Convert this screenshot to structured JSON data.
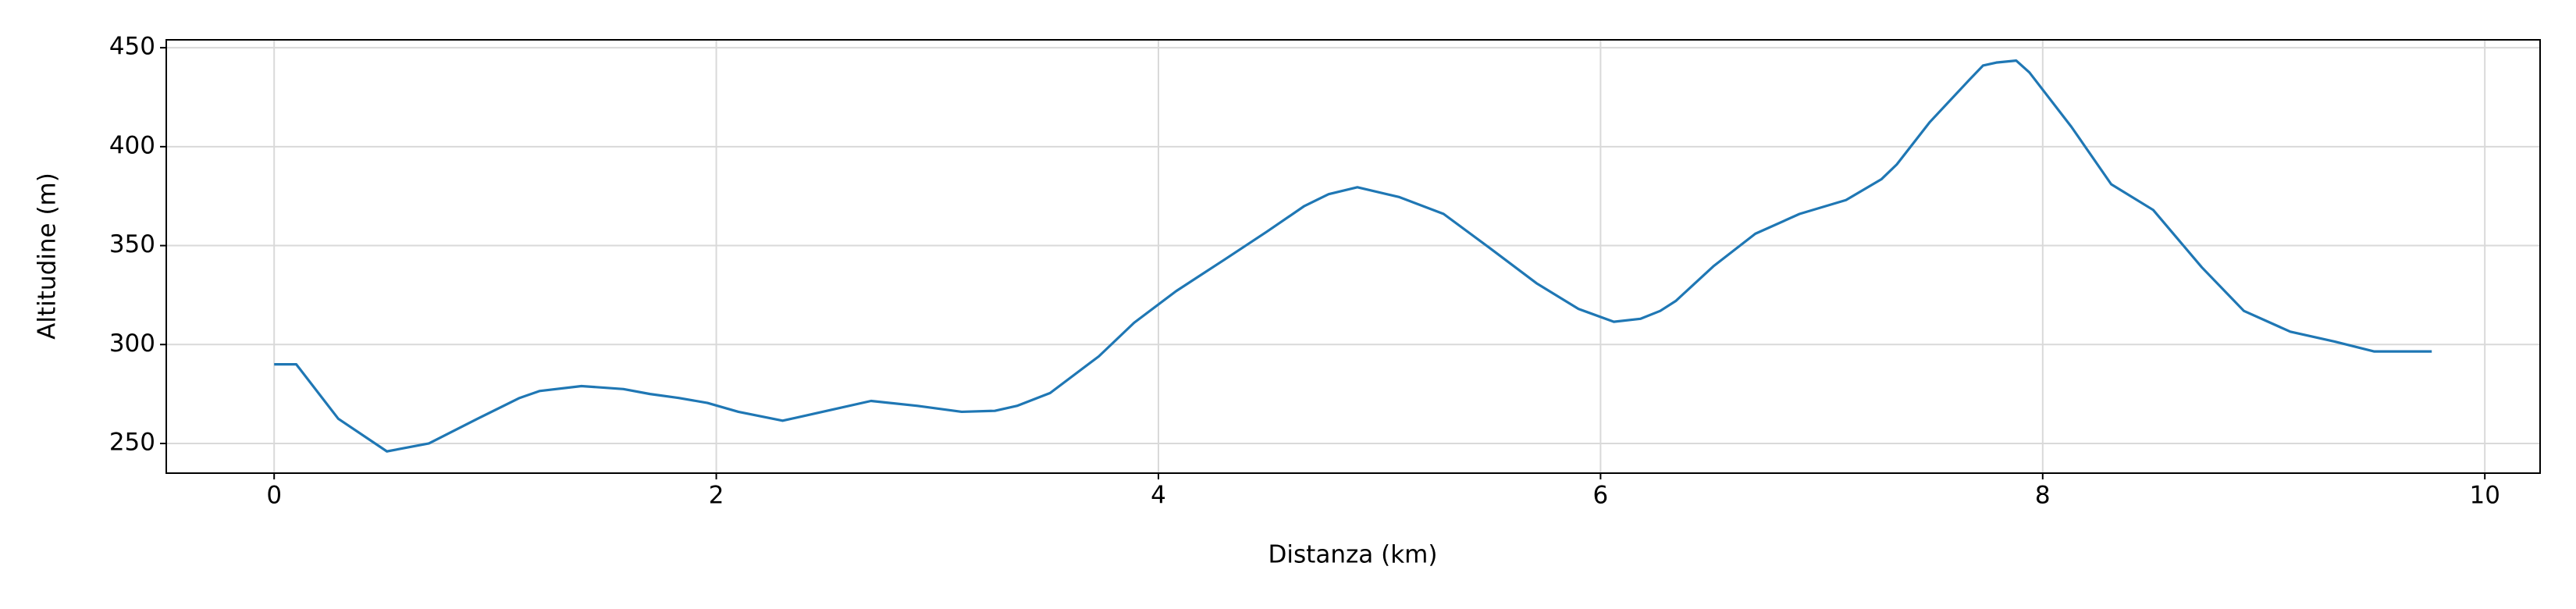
{
  "chart_data": {
    "type": "line",
    "x_label": "Distanza (km)",
    "y_label": "Altitudine (m)",
    "series": [
      {
        "color": "#1f77b4",
        "x": [
          0,
          0.1,
          0.29,
          0.51,
          0.7,
          0.92,
          1.11,
          1.2,
          1.39,
          1.58,
          1.7,
          1.83,
          1.96,
          2.1,
          2.3,
          2.52,
          2.7,
          2.91,
          3.11,
          3.26,
          3.36,
          3.51,
          3.73,
          3.89,
          4.08,
          4.3,
          4.49,
          4.66,
          4.77,
          4.9,
          5.09,
          5.29,
          5.49,
          5.71,
          5.9,
          6.06,
          6.18,
          6.27,
          6.34,
          6.51,
          6.7,
          6.9,
          7.11,
          7.27,
          7.34,
          7.49,
          7.67,
          7.73,
          7.79,
          7.88,
          7.94,
          8.13,
          8.31,
          8.5,
          8.72,
          8.91,
          9.12,
          9.32,
          9.5,
          9.76
        ],
        "values": [
          290,
          290,
          262.5,
          246,
          250,
          262.5,
          273,
          276.5,
          279,
          277.5,
          275,
          273,
          270.5,
          266,
          261.5,
          267,
          271.5,
          269,
          266,
          266.5,
          269,
          275.5,
          294,
          311,
          327,
          343,
          357,
          370,
          376,
          379.5,
          374.5,
          366,
          349.5,
          331,
          318,
          311.5,
          313,
          317,
          322,
          339.5,
          356,
          366,
          373,
          383.5,
          391,
          412.5,
          434,
          441,
          442.5,
          443.5,
          437.5,
          410,
          381,
          368,
          339,
          317,
          306.5,
          301.5,
          296.5,
          296.5
        ]
      }
    ],
    "xlim": [
      -0.488,
      10.25
    ],
    "ylim": [
      235,
      454
    ],
    "xticks": [
      0,
      2,
      4,
      6,
      8,
      10
    ],
    "yticks": [
      250,
      300,
      350,
      400,
      450
    ],
    "grid": true
  }
}
